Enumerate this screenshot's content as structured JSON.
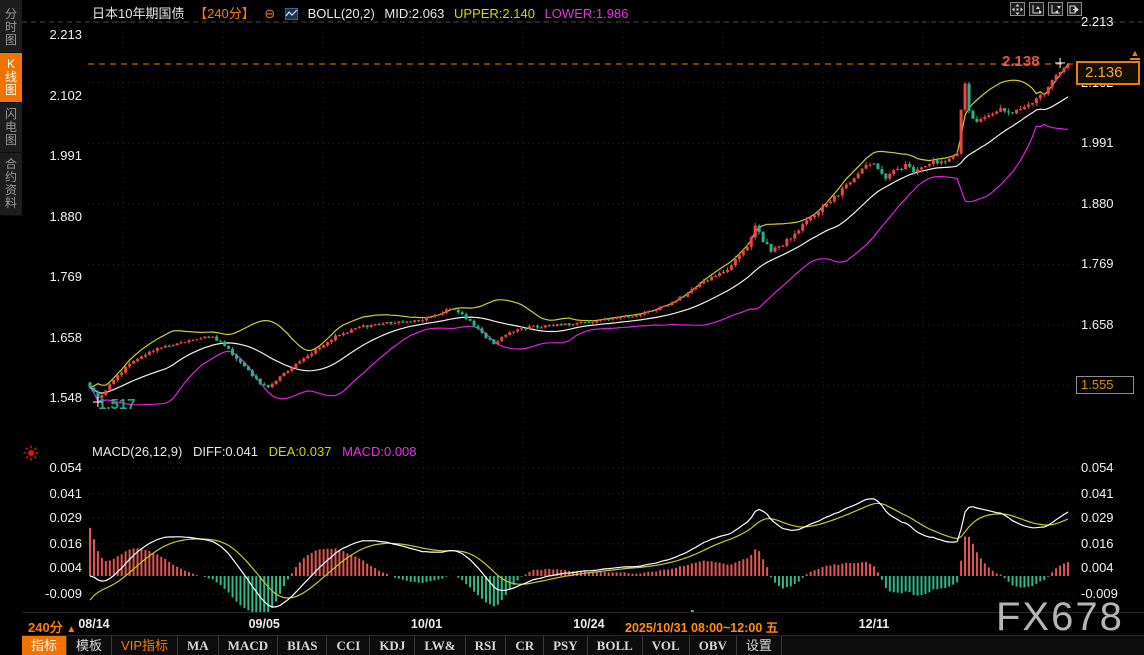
{
  "header": {
    "title": "日本10年期国债",
    "period": "【240分】",
    "collapse_icon": "⊖",
    "boll_label": "BOLL(20,2)",
    "mid": "MID:2.063",
    "upper": "UPPER:2.140",
    "lower": "LOWER:1.986"
  },
  "sidebar": {
    "items": [
      {
        "label": "分时图",
        "active": false
      },
      {
        "label": "K线图",
        "active": true
      },
      {
        "label": "闪电图",
        "active": false
      },
      {
        "label": "合约资料",
        "active": false
      }
    ]
  },
  "top_icons": [
    {
      "name": "pan-move-icon"
    },
    {
      "name": "zoom-axis-in-icon"
    },
    {
      "name": "zoom-axis-out-icon"
    },
    {
      "name": "pan-right-icon"
    }
  ],
  "macd_header": {
    "label": "MACD(26,12,9)",
    "diff": "DIFF:0.041",
    "dea": "DEA:0.037",
    "macd": "MACD:0.008"
  },
  "markers": {
    "high_label": "2.138",
    "current_price": "2.136",
    "low_box": "1.555",
    "low_label": "1.517",
    "latest_arrow": "▲"
  },
  "xaxis": {
    "period": "240分",
    "arrow": "▲",
    "selected": "2025/10/31 08:00~12:00 五"
  },
  "toolbar": {
    "items": [
      {
        "label": "指标",
        "style": "active"
      },
      {
        "label": "模板",
        "style": ""
      },
      {
        "label": "VIP指标",
        "style": "vip"
      },
      {
        "label": "MA",
        "style": "en"
      },
      {
        "label": "MACD",
        "style": "en"
      },
      {
        "label": "BIAS",
        "style": "en"
      },
      {
        "label": "CCI",
        "style": "en"
      },
      {
        "label": "KDJ",
        "style": "en"
      },
      {
        "label": "LW&",
        "style": "en"
      },
      {
        "label": "RSI",
        "style": "en"
      },
      {
        "label": "CR",
        "style": "en"
      },
      {
        "label": "PSY",
        "style": "en"
      },
      {
        "label": "BOLL",
        "style": "en"
      },
      {
        "label": "VOL",
        "style": "en"
      },
      {
        "label": "OBV",
        "style": "en"
      },
      {
        "label": "设置",
        "style": ""
      }
    ]
  },
  "watermark": "FX678",
  "colors": {
    "accent_orange": "#ff7a00",
    "candle_up": "#ee4545",
    "candle_down": "#22b586",
    "boll_upper": "#cfcf2a",
    "boll_mid": "#f0f0f0",
    "boll_lower": "#e020e0",
    "diff_line": "#ffffff",
    "dea_line": "#c8c832",
    "hist_up": "#e35555",
    "hist_down": "#2db98a",
    "current_line": "#f07c00"
  },
  "chart_data": {
    "type": "candlestick",
    "instrument": "日本10年期国债",
    "interval": "240分",
    "y_ticks": [
      2.213,
      2.102,
      1.991,
      1.88,
      1.769,
      1.658,
      1.548
    ],
    "macd_ticks": [
      0.054,
      0.041,
      0.029,
      0.016,
      0.004,
      -0.009
    ],
    "current": 2.136,
    "session_high": 2.138,
    "period_low": 1.517,
    "low_marker": 1.555,
    "boll": {
      "period": 20,
      "k": 2,
      "mid": 2.063,
      "upper": 2.14,
      "lower": 1.986
    },
    "macd": {
      "fast": 26,
      "slow": 12,
      "signal": 9,
      "diff": 0.041,
      "dea": 0.037,
      "macd": 0.008
    },
    "bars_total": 248,
    "x_date_ticks": [
      {
        "label": "08/14",
        "bar": 1
      },
      {
        "label": "09/05",
        "bar": 44
      },
      {
        "label": "10/01",
        "bar": 85
      },
      {
        "label": "10/24",
        "bar": 126
      },
      {
        "label": "12/11",
        "bar": 198
      }
    ],
    "selected_bar": {
      "bar": 152,
      "label": "2025/10/31 08:00~12:00 五"
    },
    "close_anchors": [
      [
        0,
        1.545
      ],
      [
        2,
        1.523
      ],
      [
        4,
        1.54
      ],
      [
        6,
        1.558
      ],
      [
        10,
        1.588
      ],
      [
        14,
        1.605
      ],
      [
        18,
        1.617
      ],
      [
        22,
        1.625
      ],
      [
        27,
        1.633
      ],
      [
        31,
        1.636
      ],
      [
        34,
        1.622
      ],
      [
        37,
        1.596
      ],
      [
        40,
        1.574
      ],
      [
        43,
        1.552
      ],
      [
        45,
        1.545
      ],
      [
        48,
        1.565
      ],
      [
        52,
        1.585
      ],
      [
        57,
        1.612
      ],
      [
        62,
        1.638
      ],
      [
        67,
        1.652
      ],
      [
        72,
        1.66
      ],
      [
        78,
        1.663
      ],
      [
        83,
        1.667
      ],
      [
        87,
        1.676
      ],
      [
        91,
        1.688
      ],
      [
        94,
        1.678
      ],
      [
        97,
        1.658
      ],
      [
        100,
        1.636
      ],
      [
        102,
        1.624
      ],
      [
        105,
        1.642
      ],
      [
        109,
        1.652
      ],
      [
        114,
        1.656
      ],
      [
        120,
        1.659
      ],
      [
        126,
        1.663
      ],
      [
        131,
        1.668
      ],
      [
        136,
        1.673
      ],
      [
        141,
        1.682
      ],
      [
        146,
        1.696
      ],
      [
        150,
        1.712
      ],
      [
        153,
        1.728
      ],
      [
        156,
        1.742
      ],
      [
        159,
        1.751
      ],
      [
        162,
        1.768
      ],
      [
        164,
        1.786
      ],
      [
        166,
        1.802
      ],
      [
        168,
        1.84
      ],
      [
        170,
        1.812
      ],
      [
        172,
        1.794
      ],
      [
        174,
        1.8
      ],
      [
        177,
        1.818
      ],
      [
        180,
        1.84
      ],
      [
        183,
        1.862
      ],
      [
        186,
        1.88
      ],
      [
        189,
        1.898
      ],
      [
        192,
        1.92
      ],
      [
        195,
        1.944
      ],
      [
        197,
        1.956
      ],
      [
        199,
        1.944
      ],
      [
        201,
        1.928
      ],
      [
        203,
        1.938
      ],
      [
        206,
        1.95
      ],
      [
        208,
        1.942
      ],
      [
        211,
        1.952
      ],
      [
        214,
        1.958
      ],
      [
        217,
        1.962
      ],
      [
        219,
        1.97
      ],
      [
        220,
        2.055
      ],
      [
        221,
        2.1
      ],
      [
        222,
        2.048
      ],
      [
        224,
        2.03
      ],
      [
        227,
        2.042
      ],
      [
        230,
        2.055
      ],
      [
        233,
        2.048
      ],
      [
        236,
        2.06
      ],
      [
        239,
        2.072
      ],
      [
        241,
        2.085
      ],
      [
        243,
        2.105
      ],
      [
        245,
        2.125
      ],
      [
        247,
        2.136
      ]
    ]
  }
}
